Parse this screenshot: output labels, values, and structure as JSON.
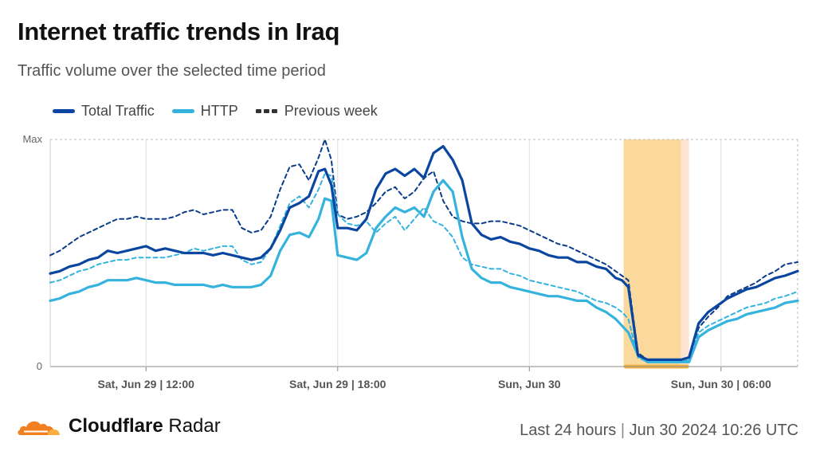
{
  "header": {
    "title": "Internet traffic trends in Iraq",
    "subtitle": "Traffic volume over the selected time period"
  },
  "footer": {
    "brand_bold": "Cloudflare",
    "brand_light": "Radar",
    "period": "Last 24 hours",
    "separator": "|",
    "timestamp": "Jun 30 2024 10:26 UTC"
  },
  "colors": {
    "total": "#0a46a0",
    "http": "#35b3de",
    "previous": "#333333",
    "outage": "#fbd99d",
    "outage_light": "#fde3d2",
    "outage_marker": "#f5b547",
    "grid": "#bbbbbb"
  },
  "chart_data": {
    "type": "line",
    "y_tick_labels": [
      "Max",
      "0"
    ],
    "ylim": [
      0,
      100
    ],
    "x_tick_labels": [
      "Sat, Jun 29 | 12:00",
      "Sat, Jun 29 | 18:00",
      "Sun, Jun 30",
      "Sun, Jun 30 | 06:00"
    ],
    "x_tick_positions": [
      6,
      12,
      18,
      24
    ],
    "x_range": [
      3,
      26.4
    ],
    "grid": true,
    "legend": {
      "placement": "top-left",
      "entries": [
        {
          "label": "Total Traffic",
          "series": "total"
        },
        {
          "label": "HTTP",
          "series": "http"
        },
        {
          "label": "Previous week",
          "series": "previous"
        }
      ]
    },
    "outage_band": {
      "start": 20.95,
      "end": 22.75,
      "end_light": 23.0
    },
    "series": [
      {
        "key": "total",
        "x": [
          3.0,
          3.3,
          3.6,
          3.9,
          4.2,
          4.5,
          4.8,
          5.1,
          5.4,
          5.7,
          6.0,
          6.3,
          6.6,
          6.9,
          7.2,
          7.5,
          7.8,
          8.1,
          8.4,
          8.7,
          9.0,
          9.3,
          9.6,
          9.9,
          10.2,
          10.5,
          10.8,
          11.1,
          11.4,
          11.6,
          11.8,
          12.0,
          12.3,
          12.6,
          12.9,
          13.2,
          13.5,
          13.8,
          14.1,
          14.4,
          14.7,
          15.0,
          15.3,
          15.6,
          15.9,
          16.2,
          16.5,
          16.8,
          17.1,
          17.4,
          17.7,
          18.0,
          18.3,
          18.6,
          18.9,
          19.2,
          19.5,
          19.8,
          20.1,
          20.4,
          20.7,
          20.9,
          21.1,
          21.4,
          21.7,
          22.0,
          22.3,
          22.75,
          23.0,
          23.3,
          23.6,
          23.9,
          24.2,
          24.5,
          24.8,
          25.1,
          25.4,
          25.7,
          26.0,
          26.4
        ],
        "y": [
          41,
          42,
          44,
          45,
          47,
          48,
          51,
          50,
          51,
          52,
          53,
          51,
          52,
          51,
          50,
          50,
          50,
          49,
          50,
          49,
          48,
          47,
          48,
          52,
          60,
          70,
          72,
          75,
          86,
          87,
          80,
          61,
          61,
          60,
          65,
          78,
          85,
          87,
          84,
          87,
          83,
          94,
          97,
          91,
          82,
          63,
          58,
          56,
          57,
          55,
          54,
          52,
          51,
          49,
          48,
          48,
          46,
          46,
          44,
          43,
          39,
          38,
          35,
          5,
          3,
          3,
          3,
          3,
          4,
          19,
          24,
          27,
          30,
          32,
          34,
          35,
          37,
          39,
          40,
          42
        ],
        "values_x_note": ""
      },
      {
        "key": "http",
        "x": [
          3.0,
          3.3,
          3.6,
          3.9,
          4.2,
          4.5,
          4.8,
          5.1,
          5.4,
          5.7,
          6.0,
          6.3,
          6.6,
          6.9,
          7.2,
          7.5,
          7.8,
          8.1,
          8.4,
          8.7,
          9.0,
          9.3,
          9.6,
          9.9,
          10.2,
          10.5,
          10.8,
          11.1,
          11.4,
          11.6,
          11.8,
          12.0,
          12.3,
          12.6,
          12.9,
          13.2,
          13.5,
          13.8,
          14.1,
          14.4,
          14.7,
          15.0,
          15.3,
          15.6,
          15.9,
          16.2,
          16.5,
          16.8,
          17.1,
          17.4,
          17.7,
          18.0,
          18.3,
          18.6,
          18.9,
          19.2,
          19.5,
          19.8,
          20.1,
          20.4,
          20.7,
          20.9,
          21.1,
          21.4,
          21.7,
          22.0,
          22.3,
          22.75,
          23.0,
          23.3,
          23.6,
          23.9,
          24.2,
          24.5,
          24.8,
          25.1,
          25.4,
          25.7,
          26.0,
          26.4
        ],
        "y": [
          29,
          30,
          32,
          33,
          35,
          36,
          38,
          38,
          38,
          39,
          38,
          37,
          37,
          36,
          36,
          36,
          36,
          35,
          36,
          35,
          35,
          35,
          36,
          40,
          51,
          58,
          59,
          57,
          65,
          74,
          73,
          49,
          48,
          47,
          50,
          61,
          66,
          70,
          68,
          70,
          66,
          77,
          82,
          77,
          57,
          43,
          39,
          37,
          37,
          35,
          34,
          33,
          32,
          31,
          31,
          30,
          29,
          29,
          26,
          24,
          21,
          18,
          15,
          5,
          2,
          2,
          2,
          2,
          2,
          13,
          16,
          18,
          20,
          21,
          23,
          24,
          25,
          26,
          28,
          29
        ]
      },
      {
        "key": "http_prev",
        "x": [
          3.0,
          3.3,
          3.6,
          3.9,
          4.2,
          4.5,
          4.8,
          5.1,
          5.4,
          5.7,
          6.0,
          6.3,
          6.6,
          6.9,
          7.2,
          7.5,
          7.8,
          8.1,
          8.4,
          8.7,
          9.0,
          9.3,
          9.6,
          9.9,
          10.2,
          10.5,
          10.8,
          11.1,
          11.4,
          11.6,
          11.8,
          12.0,
          12.3,
          12.6,
          12.9,
          13.2,
          13.5,
          13.8,
          14.1,
          14.4,
          14.7,
          15.0,
          15.3,
          15.6,
          15.9,
          16.2,
          16.5,
          16.8,
          17.1,
          17.4,
          17.7,
          18.0,
          18.3,
          18.6,
          18.9,
          19.2,
          19.5,
          19.8,
          20.1,
          20.4,
          20.7,
          20.9,
          21.1,
          21.4,
          21.7,
          22.0,
          22.3,
          22.75,
          23.0,
          23.3,
          23.6,
          23.9,
          24.2,
          24.5,
          24.8,
          25.1,
          25.4,
          25.7,
          26.0,
          26.4
        ],
        "y": [
          37,
          38,
          40,
          42,
          43,
          45,
          46,
          47,
          47,
          48,
          48,
          48,
          48,
          49,
          50,
          52,
          51,
          52,
          53,
          53,
          47,
          45,
          46,
          52,
          62,
          72,
          75,
          70,
          78,
          85,
          84,
          67,
          63,
          62,
          64,
          59,
          63,
          66,
          60,
          65,
          70,
          64,
          62,
          57,
          48,
          45,
          44,
          43,
          43,
          41,
          40,
          38,
          37,
          36,
          35,
          34,
          33,
          31,
          29,
          28,
          26,
          24,
          21,
          4,
          2,
          2,
          2,
          2,
          3,
          15,
          18,
          20,
          22,
          24,
          26,
          27,
          28,
          30,
          31,
          33
        ]
      },
      {
        "key": "previous",
        "x": [
          3.0,
          3.3,
          3.6,
          3.9,
          4.2,
          4.5,
          4.8,
          5.1,
          5.4,
          5.7,
          6.0,
          6.3,
          6.6,
          6.9,
          7.2,
          7.5,
          7.8,
          8.1,
          8.4,
          8.7,
          9.0,
          9.3,
          9.6,
          9.9,
          10.2,
          10.5,
          10.8,
          11.1,
          11.4,
          11.6,
          11.8,
          12.0,
          12.3,
          12.6,
          12.9,
          13.2,
          13.5,
          13.8,
          14.1,
          14.4,
          14.7,
          15.0,
          15.3,
          15.6,
          15.9,
          16.2,
          16.5,
          16.8,
          17.1,
          17.4,
          17.7,
          18.0,
          18.3,
          18.6,
          18.9,
          19.2,
          19.5,
          19.8,
          20.1,
          20.4,
          20.7,
          20.9,
          21.1,
          21.4,
          21.7,
          22.0,
          22.3,
          22.75,
          23.0,
          23.3,
          23.6,
          23.9,
          24.2,
          24.5,
          24.8,
          25.1,
          25.4,
          25.7,
          26.0,
          26.4
        ],
        "y": [
          49,
          51,
          54,
          57,
          59,
          61,
          63,
          65,
          65,
          66,
          65,
          65,
          65,
          66,
          68,
          69,
          67,
          68,
          69,
          69,
          61,
          59,
          60,
          66,
          78,
          88,
          89,
          82,
          92,
          100,
          91,
          67,
          65,
          66,
          68,
          72,
          77,
          79,
          74,
          77,
          83,
          86,
          73,
          66,
          64,
          63,
          63,
          64,
          64,
          63,
          62,
          60,
          58,
          56,
          54,
          53,
          51,
          49,
          47,
          45,
          42,
          40,
          38,
          6,
          3,
          3,
          3,
          3,
          4,
          17,
          22,
          26,
          31,
          33,
          35,
          37,
          40,
          42,
          45,
          46
        ]
      }
    ]
  }
}
